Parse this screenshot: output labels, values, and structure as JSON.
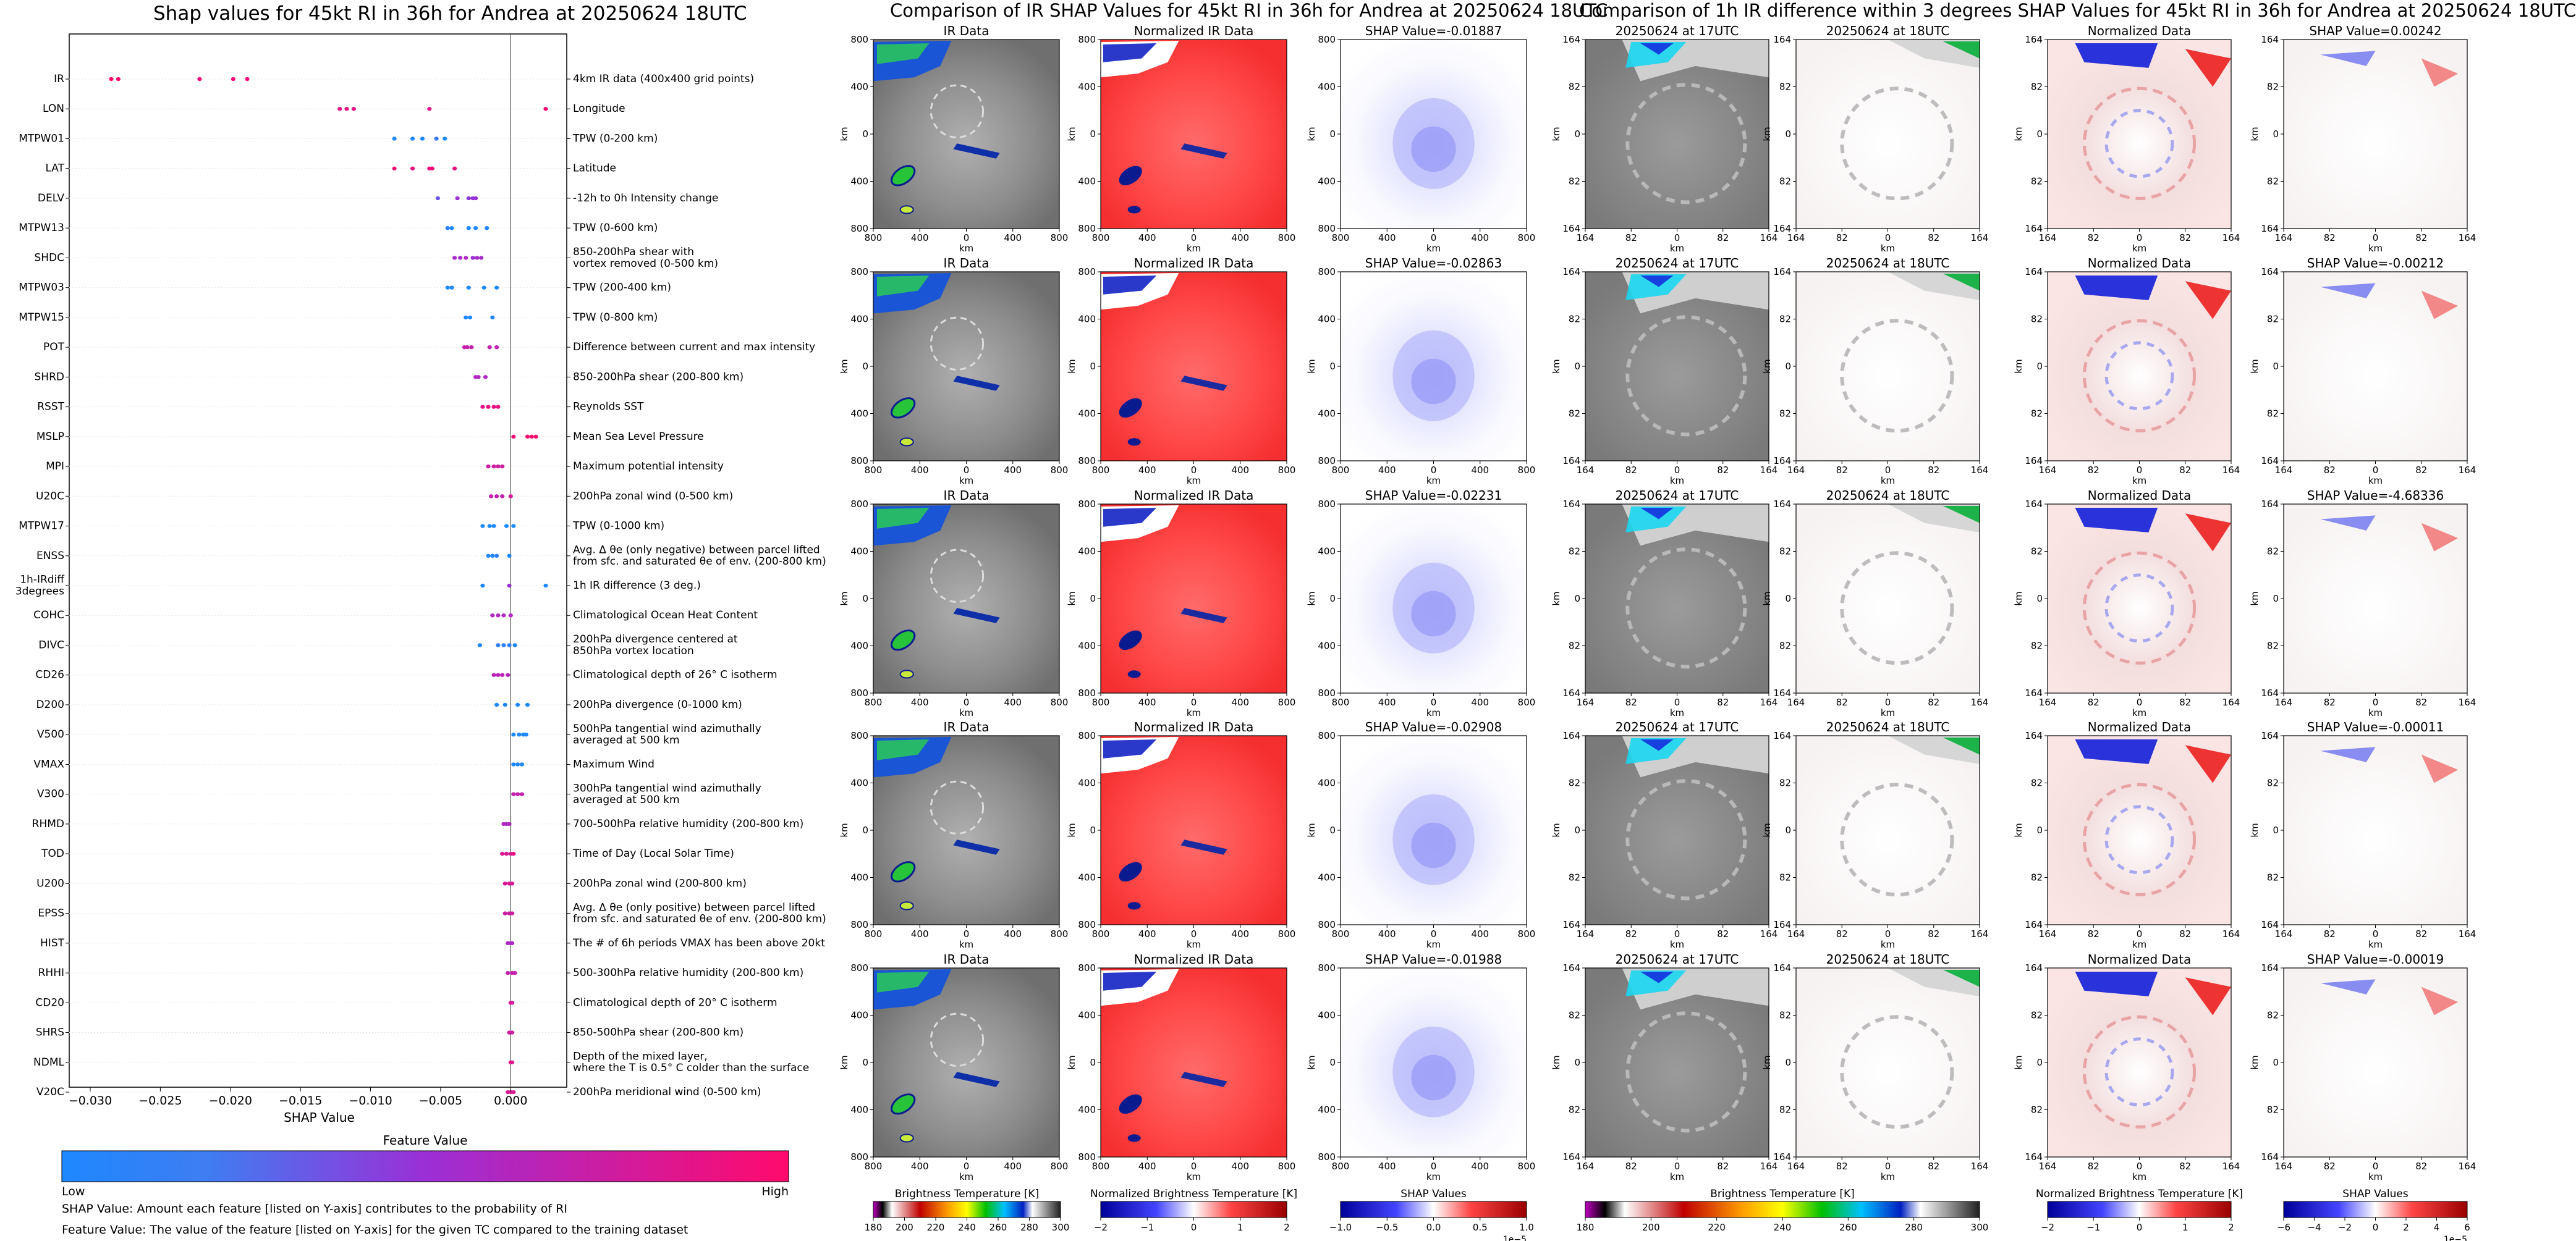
{
  "titles": {
    "shap": "Shap values for 45kt RI in 36h for Andrea at 20250624 18UTC",
    "ir": "Comparison of IR SHAP Values for 45kt RI in 36h for Andrea at 20250624 18UTC",
    "diff": "Comparison of 1h IR difference within 3 degrees SHAP Values for 45kt RI in 36h for Andrea at 20250624 18UTC"
  },
  "chart_data": [
    {
      "type": "scatter",
      "title": "Shap values for 45kt RI in 36h for Andrea at 20250624 18UTC",
      "xlabel": "SHAP Value",
      "xlim": [
        -0.0315,
        0.004
      ],
      "x_ticks": [
        "−0.030",
        "−0.025",
        "−0.020",
        "−0.015",
        "−0.010",
        "−0.005",
        "0.000"
      ],
      "x_tick_values": [
        -0.03,
        -0.025,
        -0.02,
        -0.015,
        -0.01,
        -0.005,
        0.0
      ],
      "legend": {
        "title": "Feature Value",
        "low": "Low",
        "high": "High"
      },
      "colors": {
        "low": "#1e88ff",
        "mid": "#9b2fd6",
        "high": "#ff0a6c"
      },
      "features": [
        {
          "name": "IR",
          "desc": "4km IR data (400x400 grid points)",
          "points": [
            [
              -0.0285,
              1
            ],
            [
              -0.028,
              1
            ],
            [
              -0.0222,
              0.95
            ],
            [
              -0.0198,
              0.95
            ],
            [
              -0.0188,
              0.95
            ]
          ]
        },
        {
          "name": "LON",
          "desc": "Longitude",
          "points": [
            [
              -0.0122,
              0.9
            ],
            [
              -0.0117,
              0.9
            ],
            [
              -0.0112,
              0.9
            ],
            [
              -0.0058,
              0.85
            ],
            [
              0.0025,
              1
            ]
          ]
        },
        {
          "name": "MTPW01",
          "desc": "TPW (0-200 km)",
          "points": [
            [
              -0.0083,
              0
            ],
            [
              -0.007,
              0
            ],
            [
              -0.0063,
              0
            ],
            [
              -0.0053,
              0.1
            ],
            [
              -0.0047,
              0
            ]
          ]
        },
        {
          "name": "LAT",
          "desc": "Latitude",
          "points": [
            [
              -0.0083,
              0.95
            ],
            [
              -0.007,
              0.9
            ],
            [
              -0.0058,
              0.9
            ],
            [
              -0.0056,
              0.95
            ],
            [
              -0.004,
              0.9
            ]
          ]
        },
        {
          "name": "DELV",
          "desc": "-12h to 0h Intensity change",
          "points": [
            [
              -0.0052,
              0.3
            ],
            [
              -0.0038,
              0.5
            ],
            [
              -0.003,
              0.45
            ],
            [
              -0.0027,
              0.5
            ],
            [
              -0.0025,
              0.5
            ]
          ]
        },
        {
          "name": "MTPW13",
          "desc": "TPW (0-600 km)",
          "points": [
            [
              -0.0045,
              0.05
            ],
            [
              -0.0042,
              0
            ],
            [
              -0.003,
              0
            ],
            [
              -0.0025,
              0
            ],
            [
              -0.0017,
              0
            ]
          ]
        },
        {
          "name": "SHDC",
          "desc": "850-200hPa shear with\nvortex removed (0-500 km)",
          "points": [
            [
              -0.004,
              0.55
            ],
            [
              -0.0036,
              0.55
            ],
            [
              -0.0032,
              0.6
            ],
            [
              -0.0027,
              0.5
            ],
            [
              -0.0024,
              0.55
            ],
            [
              -0.0021,
              0.55
            ]
          ]
        },
        {
          "name": "MTPW03",
          "desc": "TPW (200-400 km)",
          "points": [
            [
              -0.0045,
              0
            ],
            [
              -0.0042,
              0
            ],
            [
              -0.003,
              0
            ],
            [
              -0.0019,
              0
            ],
            [
              -0.001,
              0
            ]
          ]
        },
        {
          "name": "MTPW15",
          "desc": "TPW (0-800 km)",
          "points": [
            [
              -0.0032,
              0
            ],
            [
              -0.0029,
              0
            ],
            [
              -0.0013,
              0
            ]
          ]
        },
        {
          "name": "POT",
          "desc": "Difference between current and max intensity",
          "points": [
            [
              -0.0033,
              0.7
            ],
            [
              -0.0031,
              0.7
            ],
            [
              -0.0028,
              0.7
            ],
            [
              -0.0015,
              0.7
            ],
            [
              -0.001,
              0.7
            ]
          ]
        },
        {
          "name": "SHRD",
          "desc": "850-200hPa shear (200-800 km)",
          "points": [
            [
              -0.0025,
              0.6
            ],
            [
              -0.0023,
              0.6
            ],
            [
              -0.0018,
              0.6
            ]
          ]
        },
        {
          "name": "RSST",
          "desc": "Reynolds SST",
          "points": [
            [
              -0.002,
              0.85
            ],
            [
              -0.0016,
              0.9
            ],
            [
              -0.0012,
              0.9
            ],
            [
              -0.0009,
              0.9
            ]
          ]
        },
        {
          "name": "MSLP",
          "desc": "Mean Sea Level Pressure",
          "points": [
            [
              0.0002,
              0.95
            ],
            [
              0.0012,
              1
            ],
            [
              0.0015,
              1
            ],
            [
              0.0018,
              1
            ]
          ]
        },
        {
          "name": "MPI",
          "desc": "Maximum potential intensity",
          "points": [
            [
              -0.0016,
              0.75
            ],
            [
              -0.0012,
              0.75
            ],
            [
              -0.0009,
              0.75
            ],
            [
              -0.0006,
              0.75
            ]
          ]
        },
        {
          "name": "U20C",
          "desc": "200hPa zonal wind (0-500 km)",
          "points": [
            [
              -0.0014,
              0.7
            ],
            [
              -0.001,
              0.7
            ],
            [
              -0.0006,
              0.7
            ],
            [
              0.0,
              0.8
            ]
          ]
        },
        {
          "name": "MTPW17",
          "desc": "TPW (0-1000 km)",
          "points": [
            [
              -0.002,
              0
            ],
            [
              -0.0015,
              0
            ],
            [
              -0.0012,
              0
            ],
            [
              -0.0003,
              0
            ],
            [
              0.0002,
              0
            ]
          ]
        },
        {
          "name": "ENSS",
          "desc": "Avg. Δ θe (only negative) between parcel lifted\nfrom sfc. and saturated θe of env. (200-800 km)",
          "points": [
            [
              -0.0016,
              0
            ],
            [
              -0.0013,
              0
            ],
            [
              -0.001,
              0.05
            ],
            [
              -0.0001,
              0
            ]
          ]
        },
        {
          "name": "1h-IRdiff\n3degrees",
          "desc": "1h IR difference (3 deg.)",
          "points": [
            [
              -0.002,
              0
            ],
            [
              -0.0001,
              0.5
            ],
            [
              0.0025,
              0
            ]
          ]
        },
        {
          "name": "COHC",
          "desc": "Climatological Ocean Heat Content",
          "points": [
            [
              -0.0013,
              0.6
            ],
            [
              -0.0009,
              0.6
            ],
            [
              -0.0005,
              0.6
            ],
            [
              0.0,
              0.6
            ]
          ]
        },
        {
          "name": "DIVC",
          "desc": "200hPa divergence centered at\n850hPa vortex location",
          "points": [
            [
              -0.0022,
              0
            ],
            [
              -0.0009,
              0.05
            ],
            [
              -0.0005,
              0.05
            ],
            [
              -0.0001,
              0.05
            ],
            [
              0.0003,
              0
            ]
          ]
        },
        {
          "name": "CD26",
          "desc": "Climatological depth of 26° C isotherm",
          "points": [
            [
              -0.0012,
              0.65
            ],
            [
              -0.0009,
              0.65
            ],
            [
              -0.0006,
              0.65
            ],
            [
              -0.0002,
              0.65
            ]
          ]
        },
        {
          "name": "D200",
          "desc": "200hPa divergence (0-1000 km)",
          "points": [
            [
              -0.001,
              0
            ],
            [
              -0.0004,
              0
            ],
            [
              0.0005,
              0
            ],
            [
              0.0012,
              0
            ]
          ]
        },
        {
          "name": "V500",
          "desc": "500hPa tangential wind azimuthally\naveraged at 500 km",
          "points": [
            [
              0.0002,
              0
            ],
            [
              0.0006,
              0
            ],
            [
              0.0009,
              0
            ],
            [
              0.0011,
              0
            ]
          ]
        },
        {
          "name": "VMAX",
          "desc": "Maximum Wind",
          "points": [
            [
              0.0002,
              0
            ],
            [
              0.0005,
              0
            ],
            [
              0.0008,
              0
            ]
          ]
        },
        {
          "name": "V300",
          "desc": "300hPa tangential wind azimuthally\naveraged at 500 km",
          "points": [
            [
              0.0002,
              0.7
            ],
            [
              0.0005,
              0.7
            ],
            [
              0.0008,
              0.7
            ]
          ]
        },
        {
          "name": "RHMD",
          "desc": "700-500hPa relative humidity (200-800 km)",
          "points": [
            [
              -0.0005,
              0.6
            ],
            [
              -0.0003,
              0.6
            ],
            [
              -0.0001,
              0.6
            ]
          ]
        },
        {
          "name": "TOD",
          "desc": "Time of Day (Local Solar Time)",
          "points": [
            [
              -0.0006,
              0.85
            ],
            [
              -0.0003,
              0.8
            ],
            [
              0.0,
              0.8
            ],
            [
              0.0002,
              0.9
            ]
          ]
        },
        {
          "name": "U200",
          "desc": "200hPa zonal wind (200-800 km)",
          "points": [
            [
              -0.0004,
              0.8
            ],
            [
              -0.0001,
              0.8
            ],
            [
              0.0001,
              0.8
            ]
          ]
        },
        {
          "name": "EPSS",
          "desc": "Avg. Δ θe (only positive) between parcel lifted\nfrom sfc. and saturated θe of env. (200-800 km)",
          "points": [
            [
              -0.0004,
              0.75
            ],
            [
              -0.0001,
              0.75
            ],
            [
              0.0001,
              0.75
            ]
          ]
        },
        {
          "name": "HIST",
          "desc": "The # of 6h periods VMAX has been above 20kt",
          "points": [
            [
              -0.0002,
              0.6
            ],
            [
              0.0,
              0.6
            ],
            [
              0.0001,
              0.6
            ]
          ]
        },
        {
          "name": "RHHI",
          "desc": "500-300hPa relative humidity (200-800 km)",
          "points": [
            [
              -0.0002,
              0.7
            ],
            [
              0.0001,
              0.7
            ],
            [
              0.0003,
              0.7
            ]
          ]
        },
        {
          "name": "CD20",
          "desc": "Climatological depth of 20° C isotherm",
          "points": [
            [
              0.0,
              0.8
            ],
            [
              0.0001,
              0.8
            ]
          ]
        },
        {
          "name": "SHRS",
          "desc": "850-500hPa shear (200-800 km)",
          "points": [
            [
              -0.0001,
              0.75
            ],
            [
              0.0001,
              0.75
            ]
          ]
        },
        {
          "name": "NDML",
          "desc": "Depth of the mixed layer,\nwhere the T is 0.5° C colder than the surface",
          "points": [
            [
              0.0,
              0.85
            ],
            [
              0.0001,
              0.85
            ]
          ]
        },
        {
          "name": "V20C",
          "desc": "200hPa meridional wind (0-500 km)",
          "points": [
            [
              -0.0002,
              0.8
            ],
            [
              0.0,
              0.8
            ],
            [
              0.0002,
              0.8
            ]
          ]
        }
      ]
    },
    {
      "type": "heatmap",
      "title": "Comparison of IR SHAP Values for 45kt RI in 36h for Andrea at 20250624 18UTC",
      "rows": [
        {
          "panels": [
            "IR Data",
            "Normalized IR Data",
            "SHAP Value=-0.01887"
          ]
        },
        {
          "panels": [
            "IR Data",
            "Normalized IR Data",
            "SHAP Value=-0.02863"
          ]
        },
        {
          "panels": [
            "IR Data",
            "Normalized IR Data",
            "SHAP Value=-0.02231"
          ]
        },
        {
          "panels": [
            "IR Data",
            "Normalized IR Data",
            "SHAP Value=-0.02908"
          ]
        },
        {
          "panels": [
            "IR Data",
            "Normalized IR Data",
            "SHAP Value=-0.01988"
          ]
        }
      ],
      "axis_unit": "km",
      "x_ticks": [
        "800",
        "400",
        "0",
        "400",
        "800"
      ],
      "y_ticks": [
        "800",
        "400",
        "0",
        "400",
        "800"
      ],
      "colorbars": [
        {
          "label": "Brightness Temperature [K]",
          "ticks": [
            "180",
            "200",
            "220",
            "240",
            "260",
            "280",
            "300"
          ]
        },
        {
          "label": "Normalized Brightness Temperature [K]",
          "ticks": [
            "−2",
            "−1",
            "0",
            "1",
            "2"
          ]
        },
        {
          "label": "SHAP Values",
          "ticks": [
            "−1.0",
            "−0.5",
            "0.0",
            "0.5",
            "1.0"
          ],
          "exponent": "1e−5"
        }
      ]
    },
    {
      "type": "heatmap",
      "title": "Comparison of 1h IR difference within 3 degrees SHAP Values for 45kt RI in 36h for Andrea at 20250624 18UTC",
      "rows": [
        {
          "panels": [
            "20250624 at 17UTC",
            "20250624 at 18UTC",
            "Normalized Data",
            "SHAP Value=0.00242"
          ]
        },
        {
          "panels": [
            "20250624 at 17UTC",
            "20250624 at 18UTC",
            "Normalized Data",
            "SHAP Value=-0.00212"
          ]
        },
        {
          "panels": [
            "20250624 at 17UTC",
            "20250624 at 18UTC",
            "Normalized Data",
            "SHAP Value=-4.68336"
          ]
        },
        {
          "panels": [
            "20250624 at 17UTC",
            "20250624 at 18UTC",
            "Normalized Data",
            "SHAP Value=-0.00011"
          ]
        },
        {
          "panels": [
            "20250624 at 17UTC",
            "20250624 at 18UTC",
            "Normalized Data",
            "SHAP Value=-0.00019"
          ]
        }
      ],
      "axis_unit": "km",
      "x_ticks": [
        "164",
        "82",
        "0",
        "82",
        "164"
      ],
      "y_ticks": [
        "164",
        "82",
        "0",
        "82",
        "164"
      ],
      "colorbars": [
        {
          "label": "Brightness Temperature [K]",
          "ticks": [
            "180",
            "200",
            "220",
            "240",
            "260",
            "280",
            "300"
          ]
        },
        {
          "label": "Normalized Brightness Temperature [K]",
          "ticks": [
            "−2",
            "−1",
            "0",
            "1",
            "2"
          ]
        },
        {
          "label": "SHAP Values",
          "ticks": [
            "−6",
            "−4",
            "−2",
            "0",
            "2",
            "4",
            "6"
          ],
          "exponent": "1e−5"
        }
      ]
    }
  ],
  "footnotes": {
    "shap": "SHAP Value: Amount each feature [listed on Y-axis] contributes to the probability of RI",
    "feature": "Feature Value: The value of the feature [listed on Y-axis] for the given TC compared to the training dataset"
  }
}
